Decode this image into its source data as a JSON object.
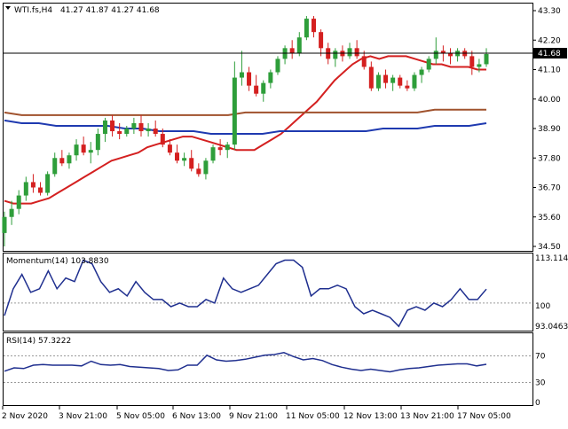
{
  "header": {
    "symbol": "WTI.fs,H4",
    "ohlc": "41.27 41.87 41.27 41.68"
  },
  "colors": {
    "bull": "#2e9e3a",
    "bear": "#d42020",
    "ma_fast": "#d42020",
    "ma_slow": "#a0522d",
    "ma_long": "#1f3ab0",
    "indicator": "#1f2f8f",
    "grid": "#9a9a9a",
    "price_tag_bg": "#000000",
    "price_tag_fg": "#ffffff"
  },
  "price_axis": {
    "ticks": [
      "43.30",
      "42.20",
      "41.10",
      "40.00",
      "38.90",
      "37.80",
      "36.70",
      "35.60",
      "34.50"
    ],
    "current_price": "41.68"
  },
  "time_axis": {
    "labels": [
      "2 Nov 2020",
      "3 Nov 21:00",
      "5 Nov 05:00",
      "6 Nov 13:00",
      "9 Nov 21:00",
      "11 Nov 05:00",
      "12 Nov 13:00",
      "13 Nov 21:00",
      "17 Nov 05:00"
    ]
  },
  "momentum": {
    "label": "Momentum(14) 103.8830",
    "ticks": [
      "113.1143",
      "100",
      "93.0463"
    ]
  },
  "rsi": {
    "label": "RSI(14) 57.3222",
    "ticks": [
      "70",
      "30",
      "0"
    ]
  },
  "chart_data": [
    {
      "type": "candlestick",
      "title": "WTI.fs,H4",
      "ylim": [
        34.3,
        43.5
      ],
      "candles": [
        [
          35.0,
          35.8,
          34.5,
          35.6
        ],
        [
          35.6,
          36.2,
          35.3,
          35.9
        ],
        [
          35.9,
          36.6,
          35.7,
          36.4
        ],
        [
          36.4,
          37.1,
          36.2,
          36.9
        ],
        [
          36.9,
          37.2,
          36.5,
          36.7
        ],
        [
          36.7,
          36.9,
          36.4,
          36.5
        ],
        [
          36.5,
          37.3,
          36.4,
          37.2
        ],
        [
          37.2,
          38.0,
          37.1,
          37.8
        ],
        [
          37.8,
          38.1,
          37.5,
          37.6
        ],
        [
          37.6,
          38.0,
          37.4,
          37.9
        ],
        [
          37.9,
          38.5,
          37.7,
          38.3
        ],
        [
          38.3,
          38.6,
          37.9,
          38.0
        ],
        [
          38.0,
          38.4,
          37.6,
          38.1
        ],
        [
          38.1,
          38.9,
          37.9,
          38.7
        ],
        [
          38.7,
          39.3,
          38.4,
          39.2
        ],
        [
          39.2,
          39.4,
          38.6,
          38.8
        ],
        [
          38.8,
          39.1,
          38.5,
          38.7
        ],
        [
          38.7,
          39.0,
          38.6,
          38.9
        ],
        [
          38.9,
          39.3,
          38.7,
          39.1
        ],
        [
          39.1,
          39.4,
          38.6,
          38.8
        ],
        [
          38.8,
          39.1,
          38.6,
          38.9
        ],
        [
          38.9,
          39.2,
          38.6,
          38.7
        ],
        [
          38.7,
          38.9,
          38.2,
          38.3
        ],
        [
          38.3,
          38.5,
          37.9,
          38.0
        ],
        [
          38.0,
          38.3,
          37.6,
          37.7
        ],
        [
          37.7,
          38.0,
          37.5,
          37.8
        ],
        [
          37.8,
          38.1,
          37.3,
          37.4
        ],
        [
          37.4,
          37.6,
          37.1,
          37.2
        ],
        [
          37.2,
          37.8,
          37.0,
          37.7
        ],
        [
          37.7,
          38.3,
          37.6,
          38.2
        ],
        [
          38.2,
          38.5,
          37.9,
          38.1
        ],
        [
          38.1,
          38.4,
          37.8,
          38.3
        ],
        [
          38.3,
          41.4,
          38.1,
          40.8
        ],
        [
          40.8,
          41.8,
          40.5,
          41.0
        ],
        [
          41.0,
          41.2,
          40.3,
          40.5
        ],
        [
          40.5,
          40.9,
          40.1,
          40.2
        ],
        [
          40.2,
          40.7,
          39.9,
          40.6
        ],
        [
          40.6,
          41.1,
          40.4,
          41.0
        ],
        [
          41.0,
          41.6,
          40.9,
          41.5
        ],
        [
          41.5,
          42.0,
          41.3,
          41.9
        ],
        [
          41.9,
          42.2,
          41.5,
          41.7
        ],
        [
          41.7,
          42.5,
          41.6,
          42.3
        ],
        [
          42.3,
          43.1,
          42.2,
          43.0
        ],
        [
          43.0,
          43.1,
          42.3,
          42.5
        ],
        [
          42.5,
          42.6,
          41.6,
          41.9
        ],
        [
          41.9,
          42.1,
          41.3,
          41.5
        ],
        [
          41.5,
          41.9,
          41.2,
          41.8
        ],
        [
          41.8,
          42.0,
          41.4,
          41.6
        ],
        [
          41.6,
          42.1,
          41.5,
          41.9
        ],
        [
          41.9,
          42.2,
          41.5,
          41.6
        ],
        [
          41.6,
          41.8,
          41.1,
          41.2
        ],
        [
          41.2,
          41.4,
          40.3,
          40.4
        ],
        [
          40.4,
          41.0,
          40.3,
          40.9
        ],
        [
          40.9,
          41.1,
          40.4,
          40.6
        ],
        [
          40.6,
          40.9,
          40.3,
          40.8
        ],
        [
          40.8,
          40.9,
          40.4,
          40.5
        ],
        [
          40.5,
          40.7,
          40.3,
          40.4
        ],
        [
          40.4,
          41.0,
          40.3,
          40.9
        ],
        [
          40.9,
          41.2,
          40.6,
          41.1
        ],
        [
          41.1,
          41.6,
          41.0,
          41.5
        ],
        [
          41.5,
          42.3,
          41.3,
          41.8
        ],
        [
          41.8,
          42.0,
          41.4,
          41.7
        ],
        [
          41.7,
          41.9,
          41.3,
          41.6
        ],
        [
          41.6,
          41.9,
          41.4,
          41.8
        ],
        [
          41.8,
          41.9,
          41.5,
          41.6
        ],
        [
          41.6,
          41.8,
          40.9,
          41.2
        ],
        [
          41.2,
          41.5,
          41.0,
          41.3
        ],
        [
          41.3,
          41.9,
          41.2,
          41.68
        ]
      ],
      "moving_averages": [
        {
          "values": [
            36.2,
            36.1,
            36.1,
            36.1,
            36.2,
            36.3,
            36.5,
            36.7,
            36.9,
            37.1,
            37.3,
            37.5,
            37.7,
            37.8,
            37.9,
            38.0,
            38.2,
            38.3,
            38.4,
            38.5,
            38.6,
            38.6,
            38.5,
            38.4,
            38.3,
            38.2,
            38.1,
            38.1,
            38.1,
            38.3,
            38.5,
            38.7,
            39.0,
            39.3,
            39.6,
            39.9,
            40.3,
            40.7,
            41.0,
            41.3,
            41.5,
            41.6,
            41.5,
            41.6,
            41.6,
            41.6,
            41.5,
            41.4,
            41.3,
            41.3,
            41.2,
            41.2,
            41.2,
            41.1,
            41.1
          ]
        },
        {
          "values": [
            39.5,
            39.4,
            39.4,
            39.4,
            39.4,
            39.4,
            39.4,
            39.4,
            39.4,
            39.4,
            39.4,
            39.4,
            39.4,
            39.4,
            39.5,
            39.5,
            39.5,
            39.5,
            39.5,
            39.5,
            39.5,
            39.5,
            39.5,
            39.5,
            39.5,
            39.6,
            39.6,
            39.6,
            39.6
          ]
        },
        {
          "values": [
            39.2,
            39.1,
            39.1,
            39.0,
            39.0,
            39.0,
            39.0,
            38.9,
            38.9,
            38.8,
            38.8,
            38.8,
            38.7,
            38.7,
            38.7,
            38.7,
            38.8,
            38.8,
            38.8,
            38.8,
            38.8,
            38.8,
            38.9,
            38.9,
            38.9,
            39.0,
            39.0,
            39.0,
            39.1
          ]
        }
      ]
    },
    {
      "type": "line",
      "title": "Momentum(14) 103.8830",
      "ylim": [
        93.0463,
        113.1143
      ],
      "values": [
        96.5,
        104,
        108,
        103,
        104,
        109,
        104,
        107,
        106,
        112,
        111,
        106,
        103,
        104,
        102,
        106,
        103,
        101,
        101,
        99,
        100,
        99,
        99,
        101,
        100,
        107,
        104,
        103,
        104,
        105,
        108,
        111,
        112,
        112,
        110,
        102,
        104,
        104,
        105,
        104,
        99,
        97,
        98,
        97,
        96,
        93.5,
        98,
        99,
        98,
        100,
        99,
        101,
        104,
        101,
        101,
        103.9
      ]
    },
    {
      "type": "line",
      "title": "RSI(14) 57.3222",
      "ylim": [
        0,
        100
      ],
      "levels": [
        70,
        30
      ],
      "values": [
        47,
        52,
        51,
        56,
        57,
        56,
        56,
        56,
        55,
        62,
        57,
        56,
        57,
        54,
        53,
        52,
        51,
        48,
        49,
        56,
        56,
        71,
        64,
        62,
        63,
        65,
        68,
        71,
        72,
        75,
        69,
        64,
        66,
        63,
        57,
        53,
        50,
        48,
        50,
        48,
        46,
        49,
        51,
        52,
        54,
        56,
        57,
        58,
        58,
        55,
        57.3
      ]
    }
  ]
}
